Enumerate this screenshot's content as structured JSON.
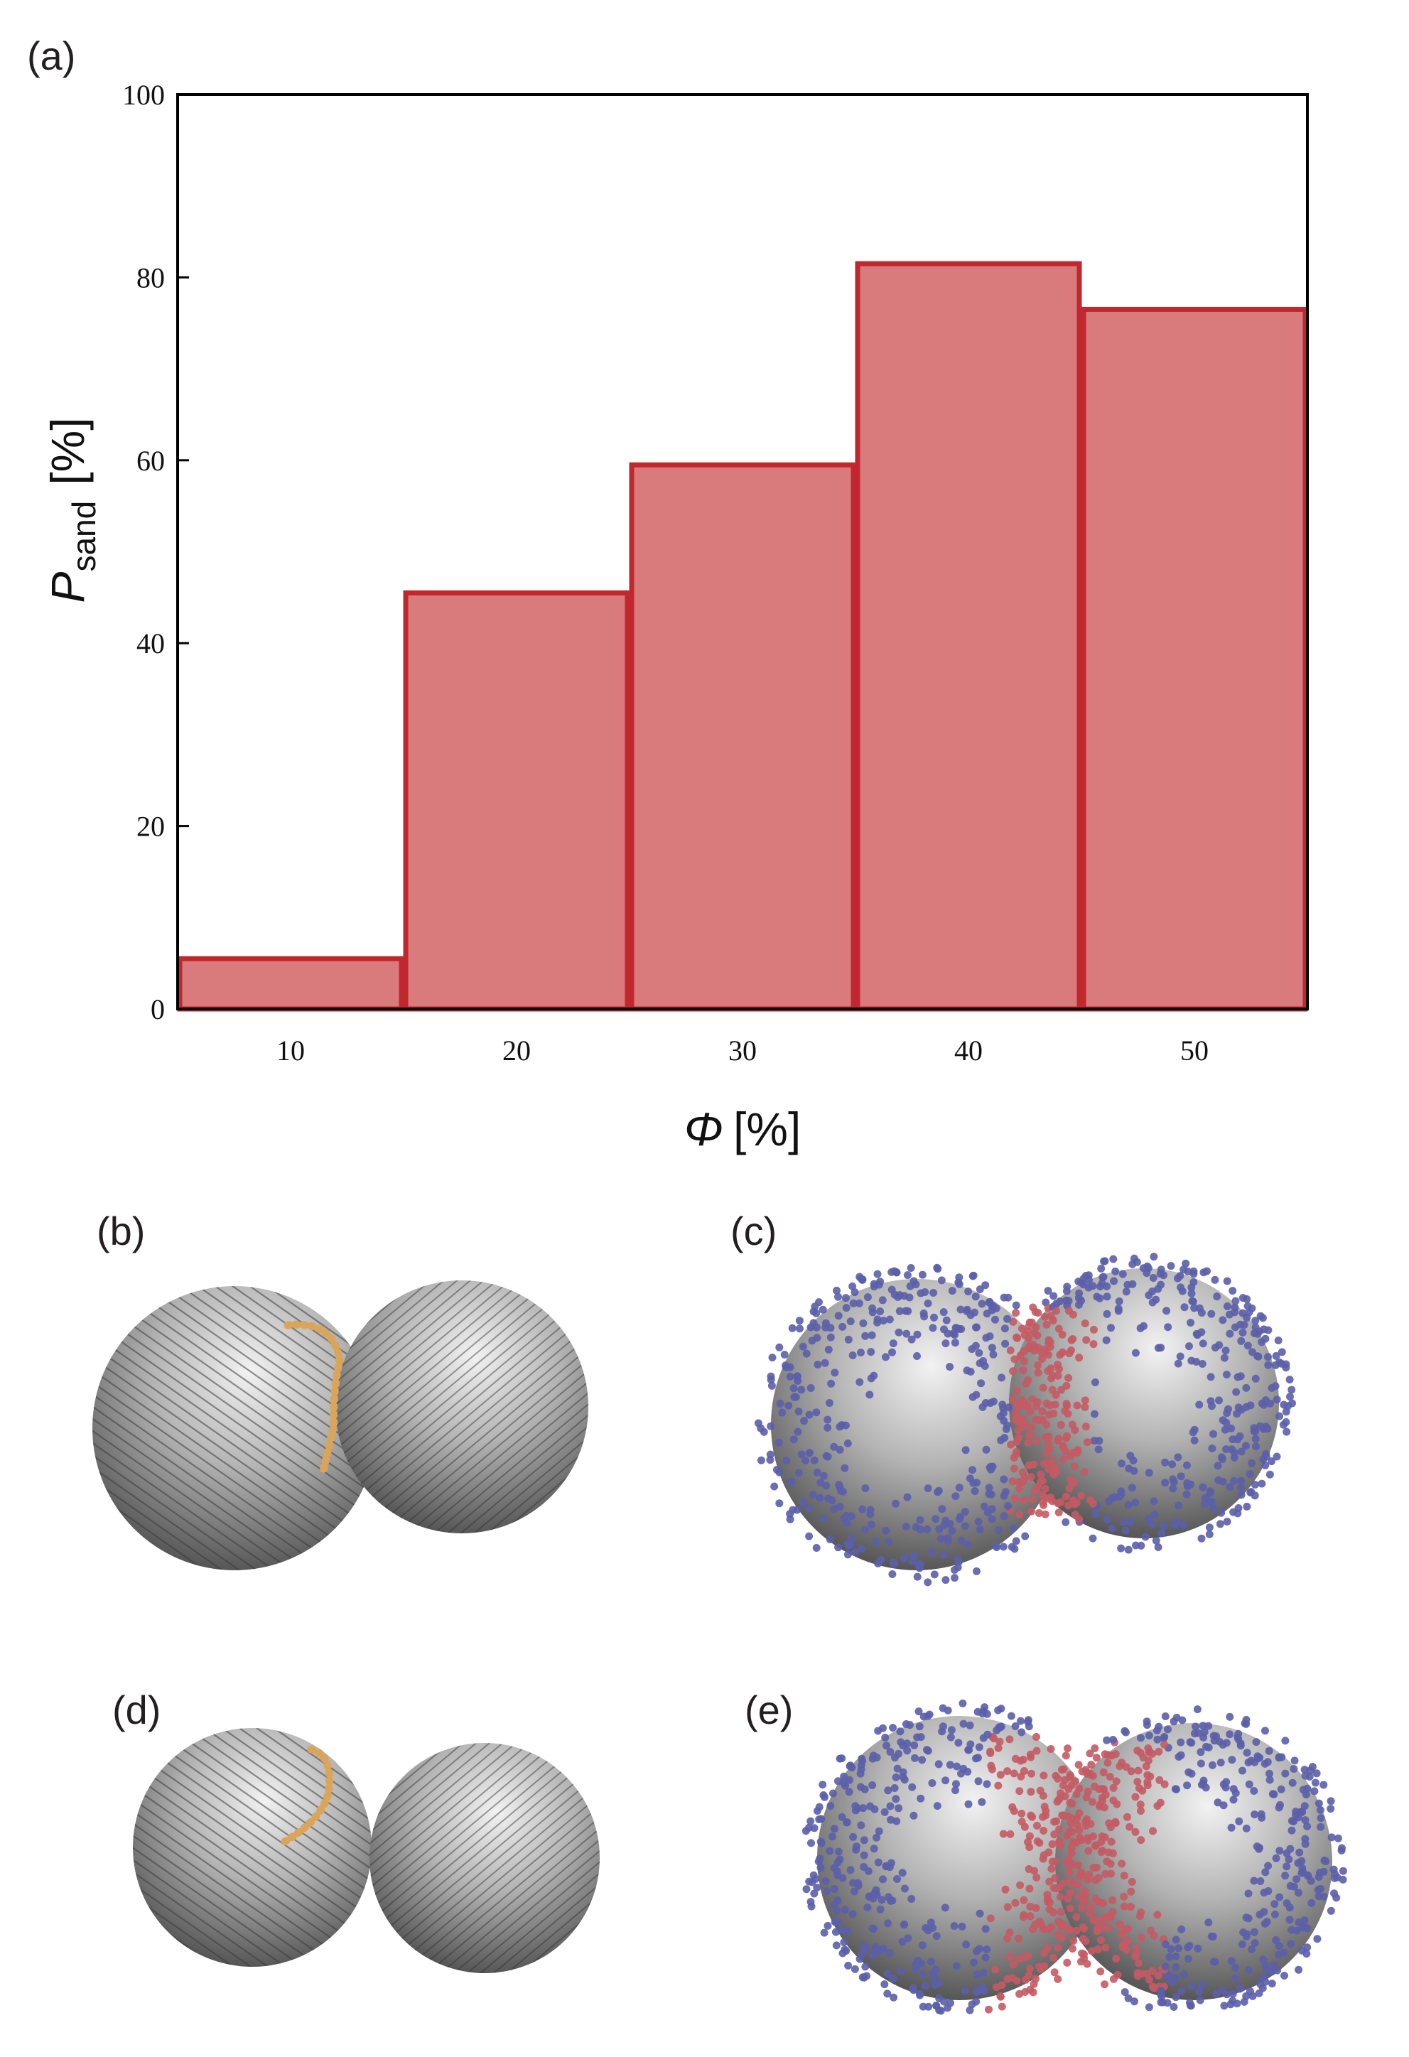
{
  "chart_data": {
    "type": "bar",
    "categories": [
      "10",
      "20",
      "30",
      "40",
      "50"
    ],
    "x": [
      10,
      20,
      30,
      40,
      50
    ],
    "values": [
      5.5,
      45.5,
      59.5,
      81.5,
      76.5
    ],
    "xlim": [
      5,
      55
    ],
    "ylim": [
      0,
      100
    ],
    "yticks": [
      "0",
      "20",
      "40",
      "60",
      "80",
      "100"
    ],
    "xlabel_symbol": "Φ",
    "xlabel_unit": "[%]",
    "ylabel_symbol": "P",
    "ylabel_subscript": "sand",
    "ylabel_unit": "[%]",
    "grid": false,
    "bar_fill": "#d97a7c",
    "bar_edge": "#c1272d"
  },
  "panels": {
    "a": "(a)",
    "b": "(b)",
    "c": "(c)",
    "d": "(d)",
    "e": "(e)"
  },
  "colors": {
    "sphere": "#8c8c8c",
    "sphere_light": "#e6e6e6",
    "ligand_blue": "#5b5fa8",
    "ligand_red": "#c45a63",
    "chain_orange": "#d9a55b"
  }
}
